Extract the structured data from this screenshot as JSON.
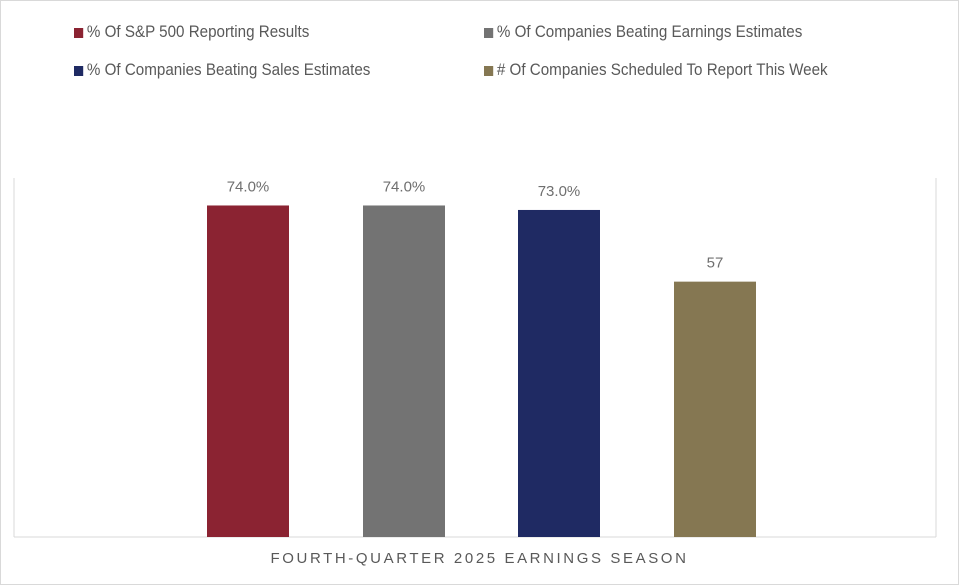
{
  "chart_data": {
    "type": "bar",
    "xlabel": "FOURTH-QUARTER 2025 EARNINGS SEASON",
    "ylabel": "",
    "legend_position": "top",
    "grid": false,
    "series": [
      {
        "name": "% Of S&P 500 Reporting Results",
        "value": 74.0,
        "label": "74.0%",
        "color": "#8B2332"
      },
      {
        "name": "% Of Companies Beating Earnings Estimates",
        "value": 74.0,
        "label": "74.0%",
        "color": "#737373"
      },
      {
        "name": "% Of Companies Beating Sales Estimates",
        "value": 73.0,
        "label": "73.0%",
        "color": "#1F2A63"
      },
      {
        "name": "# Of Companies Scheduled To Report This Week",
        "value": 57,
        "label": "57",
        "color": "#857752"
      }
    ],
    "ylim": [
      0,
      80
    ]
  }
}
